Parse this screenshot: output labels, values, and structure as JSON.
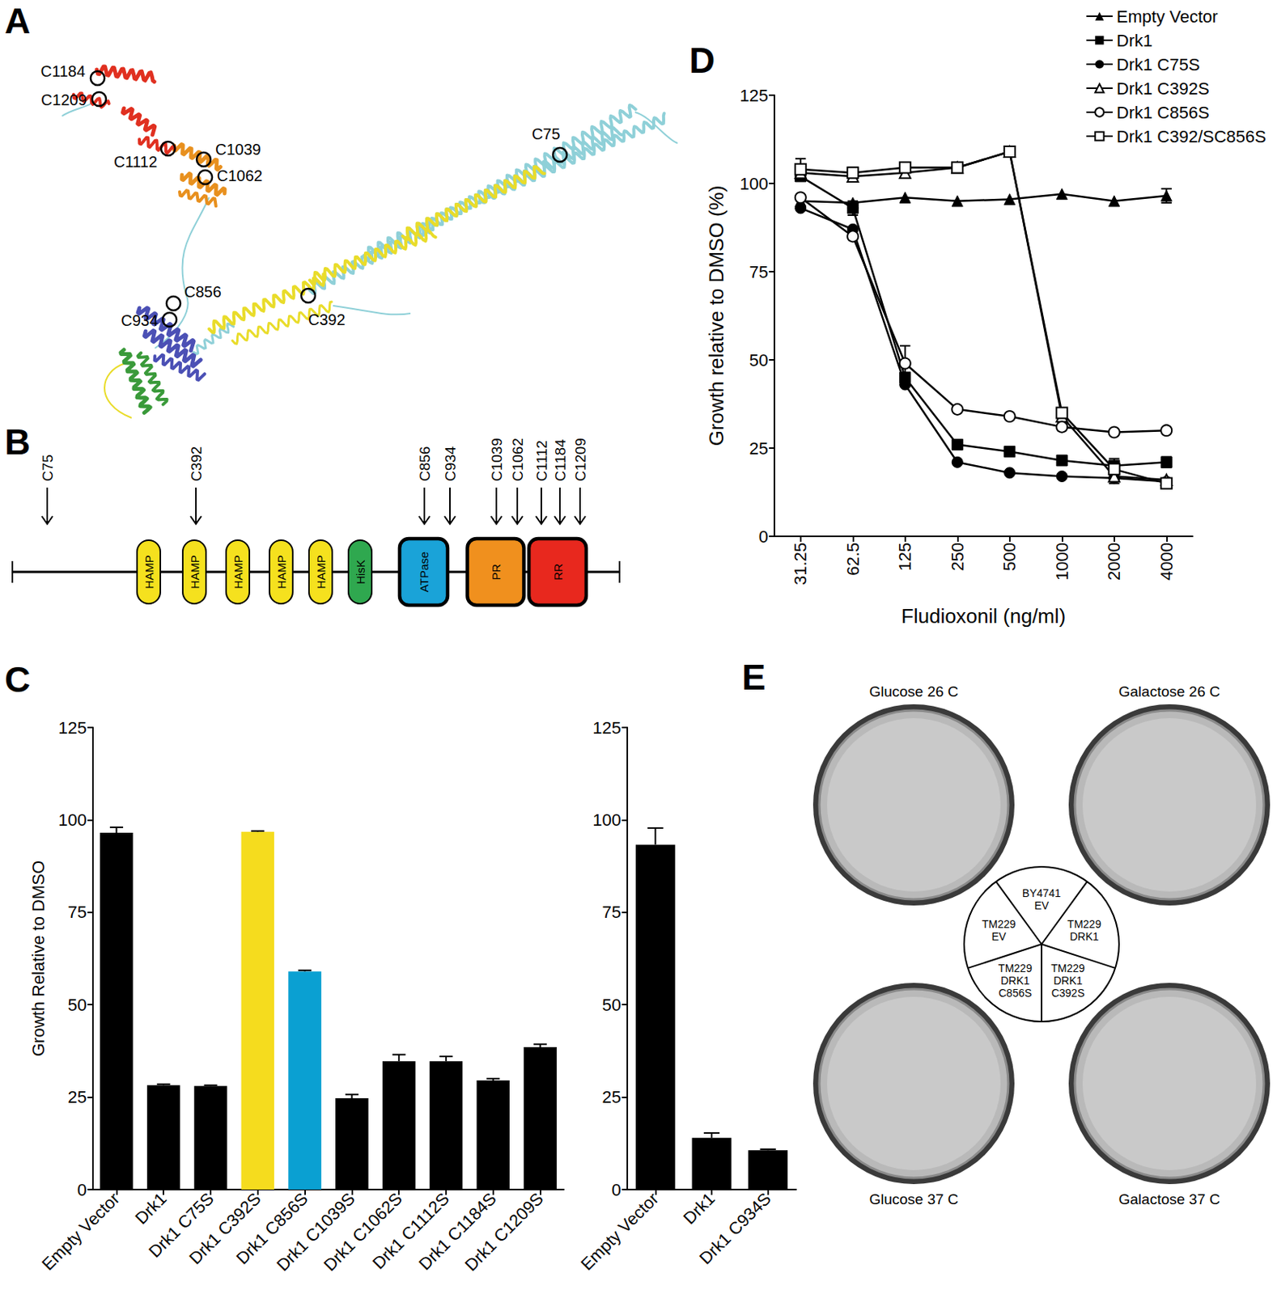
{
  "panel_letters": [
    "A",
    "B",
    "C",
    "D",
    "E"
  ],
  "structure": {
    "labels": [
      "C1184",
      "C1209",
      "C1112",
      "C1039",
      "C1062",
      "C75",
      "C856",
      "C934",
      "C392"
    ]
  },
  "domain_map": {
    "sites": [
      "C75",
      "C392",
      "C856",
      "C934",
      "C1039",
      "C1062",
      "C1112",
      "C1184",
      "C1209"
    ],
    "domains": [
      {
        "label": "HAMP",
        "color": "#f5e11e"
      },
      {
        "label": "HAMP",
        "color": "#f5e11e"
      },
      {
        "label": "HAMP",
        "color": "#f5e11e"
      },
      {
        "label": "HAMP",
        "color": "#f5e11e"
      },
      {
        "label": "HAMP",
        "color": "#f5e11e"
      },
      {
        "label": "HisK",
        "color": "#2fa84f"
      },
      {
        "label": "ATPase",
        "color": "#1aa3d8"
      },
      {
        "label": "PR",
        "color": "#f0901e"
      },
      {
        "label": "RR",
        "color": "#e8281e"
      }
    ]
  },
  "chart_data": [
    {
      "type": "bar",
      "categories": [
        "Empty Vector",
        "Drk1",
        "Drk1 C75S",
        "Drk1 C392S",
        "Drk1 C856S",
        "Drk1 C1039S",
        "Drk1 C1062S",
        "Drk1 C1112S",
        "Drk1 C1184S",
        "Drk1 C1209S"
      ],
      "values": [
        96.5,
        28.2,
        28,
        96.8,
        59,
        24.7,
        34.7,
        34.7,
        29.5,
        38.5
      ],
      "errors": [
        1.5,
        0.3,
        0.2,
        0.2,
        0.3,
        1,
        1.8,
        1.3,
        0.5,
        0.8
      ],
      "colors": [
        "#000000",
        "#000000",
        "#000000",
        "#f5dc1e",
        "#0aa0d2",
        "#000000",
        "#000000",
        "#000000",
        "#000000",
        "#000000"
      ],
      "y_label": "Growth Relative to DMSO",
      "ylim": [
        0,
        125
      ],
      "yticks": [
        0,
        25,
        50,
        75,
        100,
        125
      ],
      "grid": false
    },
    {
      "type": "bar",
      "categories": [
        "Empty Vector",
        "Drk1",
        "Drk1 C934S"
      ],
      "values": [
        93.3,
        14,
        10.6
      ],
      "errors": [
        4.5,
        1.3,
        0.3
      ],
      "colors": [
        "#000000",
        "#000000",
        "#000000"
      ],
      "ylim": [
        0,
        125
      ],
      "yticks": [
        0,
        25,
        50,
        75,
        100,
        125
      ],
      "grid": false
    },
    {
      "type": "line",
      "categories": [
        "31.25",
        "62.5",
        "125",
        "250",
        "500",
        "1000",
        "2000",
        "4000"
      ],
      "x_label": "Fludioxonil (ng/ml)",
      "y_label": "Growth relative to DMSO (%)",
      "ylim": [
        0,
        125
      ],
      "yticks": [
        0,
        25,
        50,
        75,
        100,
        125
      ],
      "grid": false,
      "legend": "top-right",
      "series": [
        {
          "name": "Empty Vector",
          "color": "#000000",
          "marker": "triangle",
          "values": [
            95,
            94.5,
            96,
            95,
            95.5,
            97,
            95,
            96.5
          ],
          "errors": [
            null,
            null,
            null,
            null,
            null,
            null,
            null,
            2
          ]
        },
        {
          "name": "Drk1",
          "color": "#000000",
          "marker": "square",
          "values": [
            102,
            93,
            45,
            26,
            24,
            21.5,
            20,
            21
          ],
          "errors": [
            null,
            2,
            null,
            null,
            null,
            null,
            null,
            1.5
          ]
        },
        {
          "name": "Drk1 C75S",
          "color": "#000000",
          "marker": "circle",
          "values": [
            93,
            87,
            43,
            21,
            18,
            17,
            16.5,
            15.5
          ],
          "errors": [
            null,
            null,
            null,
            null,
            null,
            null,
            null,
            null
          ]
        },
        {
          "name": "Drk1 C392S",
          "color": "#000000",
          "marker": "open_triangle",
          "values": [
            103,
            102,
            103,
            104.5,
            109,
            34,
            17,
            16
          ],
          "errors": [
            2,
            null,
            null,
            null,
            null,
            null,
            2,
            null
          ]
        },
        {
          "name": "Drk1 C856S",
          "color": "#000000",
          "marker": "open_circle",
          "values": [
            96,
            85,
            49,
            36,
            34,
            31,
            29.5,
            30
          ],
          "errors": [
            null,
            null,
            5,
            null,
            null,
            null,
            null,
            null
          ]
        },
        {
          "name": "Drk1 C392/SC856S",
          "color": "#000000",
          "marker": "open_square",
          "values": [
            104,
            103,
            104.5,
            104.5,
            109,
            35,
            19,
            15
          ],
          "errors": [
            3,
            1.5,
            null,
            null,
            1,
            null,
            3,
            1
          ]
        }
      ]
    }
  ],
  "plates": {
    "titles": [
      "Glucose 26 C",
      "Galactose 26 C",
      "Glucose 37 C",
      "Galactose 37 C"
    ],
    "key": [
      "BY4741 EV",
      "TM229 DRK1",
      "TM229 DRK1 C392S",
      "TM229 DRK1 C856S",
      "TM229 EV"
    ]
  }
}
